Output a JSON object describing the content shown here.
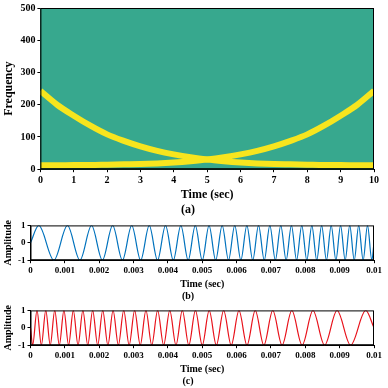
{
  "chart_data": [
    {
      "type": "spectrogram",
      "title": "(a)",
      "xlabel": "Time (sec)",
      "ylabel": "Frequency",
      "x": [
        0,
        0.5,
        1,
        1.5,
        2,
        2.5,
        3,
        3.5,
        4,
        4.5,
        5,
        5.5,
        6,
        6.5,
        7,
        7.5,
        8,
        8.5,
        9,
        9.5,
        10
      ],
      "series": [
        {
          "color": "#f7e51e",
          "values": [
            243,
            200,
            166,
            135,
            108,
            88,
            71,
            57,
            46,
            37,
            30,
            25,
            21,
            18,
            16,
            15,
            14,
            13,
            13,
            12,
            12
          ]
        },
        {
          "color": "#f7e51e",
          "values": [
            12,
            12,
            13,
            13,
            14,
            15,
            16,
            18,
            21,
            25,
            30,
            37,
            46,
            57,
            71,
            88,
            108,
            135,
            166,
            200,
            243
          ]
        }
      ],
      "xlim": [
        0,
        10
      ],
      "xticks": [
        0,
        1,
        2,
        3,
        4,
        5,
        6,
        7,
        8,
        9,
        10
      ],
      "ylim": [
        0,
        500
      ],
      "yticks": [
        0,
        100,
        200,
        300,
        400,
        500
      ],
      "grid": false
    },
    {
      "type": "line",
      "title": "(b)",
      "xlabel": "Time (sec)",
      "ylabel": "Amplitude",
      "x": [
        0,
        0.000241,
        0.000681,
        0.001076,
        0.001439,
        0.001777,
        0.002093,
        0.002392,
        0.002676,
        0.002947,
        0.003207,
        0.003457,
        0.003698,
        0.003931,
        0.004157,
        0.004377,
        0.00459,
        0.004798,
        0.005,
        0.005198,
        0.005391,
        0.00558,
        0.005765,
        0.005946,
        0.006124,
        0.006299,
        0.00647,
        0.006639,
        0.006805,
        0.006968,
        0.007128,
        0.007286,
        0.007442,
        0.007596,
        0.007747,
        0.007897,
        0.008044,
        0.00819,
        0.008333,
        0.008475,
        0.008616,
        0.008754,
        0.008891,
        0.009027,
        0.009161,
        0.009294,
        0.009425,
        0.009555,
        0.009684,
        0.009811,
        0.009937,
        0.01
      ],
      "series": [
        {
          "color": "#0072bd",
          "values": [
            0,
            1,
            -1,
            1,
            -1,
            1,
            -1,
            1,
            -1,
            1,
            -1,
            1,
            -1,
            1,
            -1,
            1,
            -1,
            1,
            -1,
            1,
            -1,
            1,
            -1,
            1,
            -1,
            1,
            -1,
            1,
            -1,
            1,
            -1,
            1,
            -1,
            1,
            -1,
            1,
            -1,
            1,
            -1,
            1,
            -1,
            1,
            -1,
            1,
            -1,
            1,
            -1,
            1,
            -1,
            1,
            -1,
            0
          ]
        }
      ],
      "xlim": [
        0,
        0.01
      ],
      "xticks": [
        0,
        0.001,
        0.002,
        0.003,
        0.004,
        0.005,
        0.006,
        0.007,
        0.008,
        0.009,
        0.01
      ],
      "ylim": [
        -1,
        1
      ],
      "yticks": [
        -1,
        0,
        1
      ],
      "grid": false
    },
    {
      "type": "line",
      "title": "(c)",
      "xlabel": "Time (sec)",
      "ylabel": "Amplitude",
      "x": [
        0,
        6.3e-05,
        0.000189,
        0.000316,
        0.000445,
        0.000575,
        0.000706,
        0.000839,
        0.000973,
        0.001109,
        0.001246,
        0.001384,
        0.001525,
        0.001667,
        0.00181,
        0.001956,
        0.002103,
        0.002253,
        0.002404,
        0.002558,
        0.002714,
        0.002872,
        0.003032,
        0.003195,
        0.003361,
        0.00353,
        0.003701,
        0.003876,
        0.004054,
        0.004235,
        0.00442,
        0.004609,
        0.004802,
        0.005,
        0.005202,
        0.00541,
        0.005623,
        0.005843,
        0.006069,
        0.006302,
        0.006543,
        0.006793,
        0.007053,
        0.007324,
        0.007608,
        0.007907,
        0.008223,
        0.008561,
        0.008924,
        0.009319,
        0.009759,
        0.01
      ],
      "series": [
        {
          "color": "#e8121b",
          "values": [
            0,
            -1,
            1,
            -1,
            1,
            -1,
            1,
            -1,
            1,
            -1,
            1,
            -1,
            1,
            -1,
            1,
            -1,
            1,
            -1,
            1,
            -1,
            1,
            -1,
            1,
            -1,
            1,
            -1,
            1,
            -1,
            1,
            -1,
            1,
            -1,
            1,
            -1,
            1,
            -1,
            1,
            -1,
            1,
            -1,
            1,
            -1,
            1,
            -1,
            1,
            -1,
            1,
            -1,
            1,
            -1,
            1,
            0
          ]
        }
      ],
      "xlim": [
        0,
        0.01
      ],
      "xticks": [
        0,
        0.001,
        0.002,
        0.003,
        0.004,
        0.005,
        0.006,
        0.007,
        0.008,
        0.009,
        0.01
      ],
      "ylim": [
        -1,
        1
      ],
      "yticks": [
        -1,
        0,
        1
      ],
      "grid": false
    }
  ]
}
